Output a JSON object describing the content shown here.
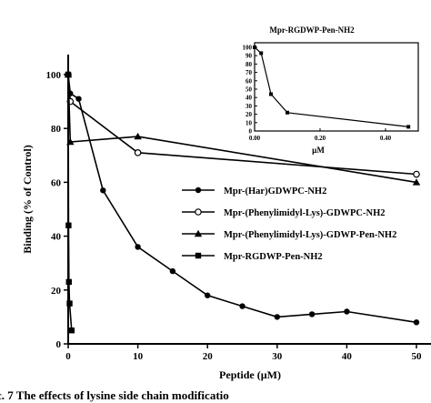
{
  "chart_data": [
    {
      "type": "line",
      "title": "",
      "xlabel": "Peptide (µM)",
      "ylabel": "Binding (% of Control)",
      "xlim": [
        0,
        50
      ],
      "ylim": [
        0,
        100
      ],
      "x_ticks": [
        "0",
        "10",
        "20",
        "30",
        "40",
        "50"
      ],
      "y_ticks": [
        "0",
        "20",
        "40",
        "60",
        "80",
        "100"
      ],
      "legend_position": "center-right",
      "series": [
        {
          "name": "Mpr-(Har)GDWPC-NH2",
          "marker": "filled-circle",
          "x": [
            0,
            0.3,
            1.5,
            5,
            10,
            15,
            20,
            25,
            30,
            35,
            40,
            50
          ],
          "y": [
            100,
            93,
            91,
            57,
            36,
            27,
            18,
            14,
            10,
            11,
            12,
            8
          ]
        },
        {
          "name": "Mpr-(Phenylimidyl-Lys)-GDWPC-NH2",
          "marker": "open-circle",
          "x": [
            0,
            0.3,
            10,
            50
          ],
          "y": [
            100,
            90,
            71,
            63
          ]
        },
        {
          "name": "Mpr-(Phenylimidyl-Lys)-GDWP-Pen-NH2",
          "marker": "filled-triangle",
          "x": [
            0,
            0.3,
            10,
            50
          ],
          "y": [
            100,
            75,
            77,
            60
          ]
        },
        {
          "name": "Mpr-RGDWP-Pen-NH2",
          "marker": "filled-square",
          "x": [
            0,
            0.05,
            0.1,
            0.2,
            0.5
          ],
          "y": [
            100,
            44,
            23,
            15,
            5
          ]
        }
      ]
    },
    {
      "type": "line",
      "title": "Mpr-RGDWP-Pen-NH2",
      "xlabel": "µM",
      "ylabel": "",
      "xlim": [
        0,
        0.5
      ],
      "ylim": [
        0,
        100
      ],
      "x_ticks": [
        "0.00",
        "0.20",
        "0.40"
      ],
      "y_ticks": [
        "0",
        "10",
        "20",
        "30",
        "40",
        "50",
        "60",
        "70",
        "80",
        "90",
        "100"
      ],
      "series": [
        {
          "name": "Mpr-RGDWP-Pen-NH2",
          "marker": "filled-square",
          "x": [
            0,
            0.02,
            0.05,
            0.1,
            0.47
          ],
          "y": [
            100,
            93,
            44,
            22,
            5
          ]
        }
      ]
    }
  ],
  "caption": "c. 7  The effects of lysine side chain modificatio"
}
